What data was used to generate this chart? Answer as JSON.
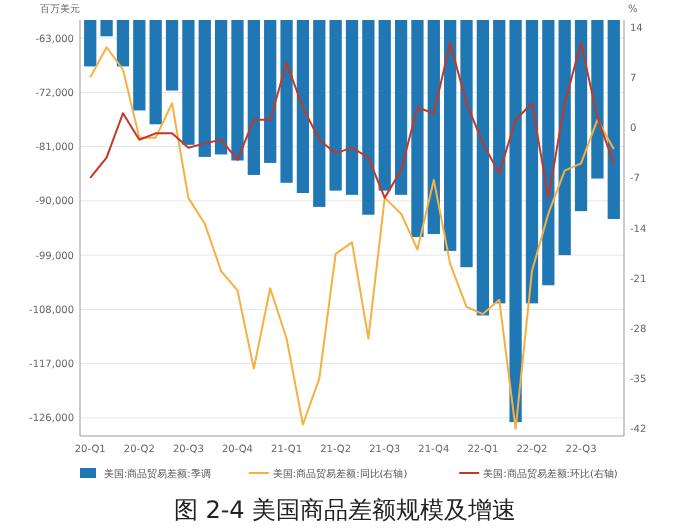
{
  "chart_data": {
    "type": "bar",
    "title": "图 2-4  美国商品差额规模及增速",
    "ylabel": "百万美元",
    "y2label": "%",
    "categories": [
      "20-Q1",
      null,
      null,
      "20-Q2",
      null,
      null,
      "20-Q3",
      null,
      null,
      "20-Q4",
      null,
      null,
      "21-Q1",
      null,
      null,
      "21-Q2",
      null,
      null,
      "21-Q3",
      null,
      null,
      "21-Q4",
      null,
      null,
      "22-Q1",
      null,
      null,
      "22-Q2",
      null,
      null,
      "22-Q3",
      null,
      null
    ],
    "series": [
      {
        "name": "美国:商品贸易差额:季调",
        "color": "#1f77b4",
        "values": [
          -67700,
          -62700,
          -67700,
          -75000,
          -77300,
          -71700,
          -80700,
          -82700,
          -82300,
          -83300,
          -85700,
          -83700,
          -87000,
          -88700,
          -91000,
          -88300,
          -89000,
          -92300,
          -88300,
          -89000,
          -96000,
          -95500,
          -98300,
          -101000,
          -109000,
          -107000,
          -126700,
          -107000,
          -104000,
          -99000,
          -91700,
          -86300,
          -93000
        ]
      },
      {
        "name": "美国:商品贸易差额:同比(右轴)",
        "type": "line",
        "axis": "y2",
        "color": "#f5b041",
        "values": [
          7,
          11.2,
          8.1,
          -1.4,
          -1.4,
          3.4,
          -9.8,
          -13.4,
          -20,
          -22.7,
          -33.6,
          -22.4,
          -29.4,
          -41.4,
          -35,
          -17.6,
          -16,
          -29.4,
          -9.8,
          -12,
          -17,
          -7.3,
          -19,
          -25,
          -26,
          -24,
          -42,
          -20,
          -12,
          -6,
          -5,
          1.1,
          -3
        ]
      },
      {
        "name": "美国:商品贸易差额:环比(右轴)",
        "type": "line",
        "axis": "y2",
        "color": "#c0392b",
        "values": [
          -7,
          -4.2,
          2,
          -1.7,
          -0.8,
          -0.8,
          -2.8,
          -2.2,
          -1.7,
          -4.5,
          1.1,
          1.1,
          9,
          2.8,
          -1.7,
          -3.6,
          -2.8,
          -4.2,
          -9.8,
          -5.9,
          2.8,
          2,
          11.8,
          3.4,
          -2.2,
          -6.4,
          1.1,
          3.4,
          -9.8,
          3.4,
          11.8,
          1.4,
          -5
        ]
      }
    ],
    "ylim": [
      -129000,
      -60000
    ],
    "yticks": [
      {
        "value": -63000,
        "label": "-63,000"
      },
      {
        "value": -72000,
        "label": "-72,000"
      },
      {
        "value": -81000,
        "label": "-81,000"
      },
      {
        "value": -90000,
        "label": "-90,000"
      },
      {
        "value": -99000,
        "label": "-99,000"
      },
      {
        "value": -108000,
        "label": "-108,000"
      },
      {
        "value": -117000,
        "label": "-117,000"
      },
      {
        "value": -126000,
        "label": "-126,000"
      }
    ],
    "y2lim": [
      -43,
      15
    ],
    "y2ticks": [
      14,
      7,
      0,
      -7,
      -14,
      -21,
      -28,
      -35,
      -42
    ],
    "grid": "y",
    "legend": "bottom"
  }
}
